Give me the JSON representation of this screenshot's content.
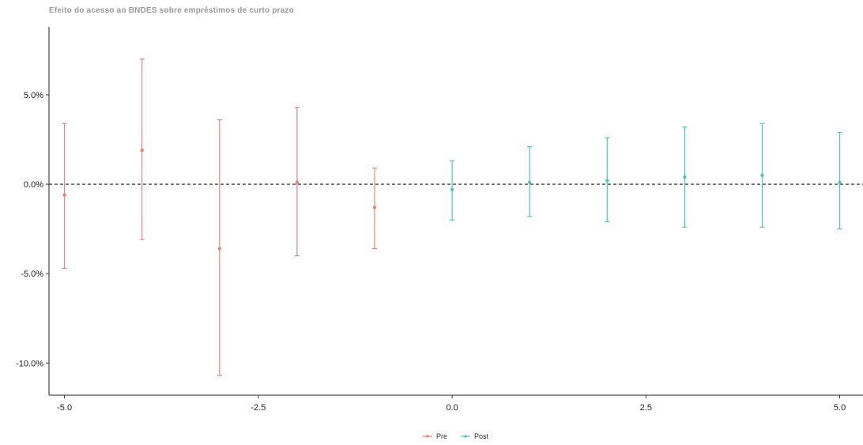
{
  "chart_data": {
    "type": "scatter",
    "title": "Efeito do acesso ao BNDES sobre empréstimos de curto prazo",
    "xlabel": "",
    "ylabel": "",
    "xlim": [
      -5.2,
      5.3
    ],
    "ylim": [
      -11.8,
      8.8
    ],
    "x_ticks": [
      -5.0,
      -2.5,
      0.0,
      2.5,
      5.0
    ],
    "x_tick_labels": [
      "-5.0",
      "-2.5",
      "0.0",
      "2.5",
      "5.0"
    ],
    "y_ticks": [
      5.0,
      0.0,
      -5.0,
      -10.0
    ],
    "y_tick_labels": [
      "5.0%",
      "0.0%",
      "-5.0%",
      "-10.0%"
    ],
    "reference_line": {
      "y": 0,
      "style": "dashed"
    },
    "grid": false,
    "legend_position": "bottom",
    "series": [
      {
        "name": "Pre",
        "color": "#f08178",
        "points": [
          {
            "x": -5,
            "y": -0.6,
            "lo": -4.7,
            "hi": 3.4
          },
          {
            "x": -4,
            "y": 1.9,
            "lo": -3.1,
            "hi": 7.0
          },
          {
            "x": -3,
            "y": -3.6,
            "lo": -10.7,
            "hi": 3.6
          },
          {
            "x": -2,
            "y": 0.1,
            "lo": -4.0,
            "hi": 4.3
          },
          {
            "x": -1,
            "y": -1.3,
            "lo": -3.6,
            "hi": 0.9
          }
        ]
      },
      {
        "name": "Post",
        "color": "#4fc4c4",
        "points": [
          {
            "x": 0,
            "y": -0.3,
            "lo": -2.0,
            "hi": 1.3
          },
          {
            "x": 1,
            "y": 0.1,
            "lo": -1.8,
            "hi": 2.1
          },
          {
            "x": 2,
            "y": 0.2,
            "lo": -2.1,
            "hi": 2.6
          },
          {
            "x": 3,
            "y": 0.4,
            "lo": -2.4,
            "hi": 3.2
          },
          {
            "x": 4,
            "y": 0.5,
            "lo": -2.4,
            "hi": 3.4
          },
          {
            "x": 5,
            "y": 0.1,
            "lo": -2.5,
            "hi": 2.9
          }
        ]
      }
    ]
  }
}
